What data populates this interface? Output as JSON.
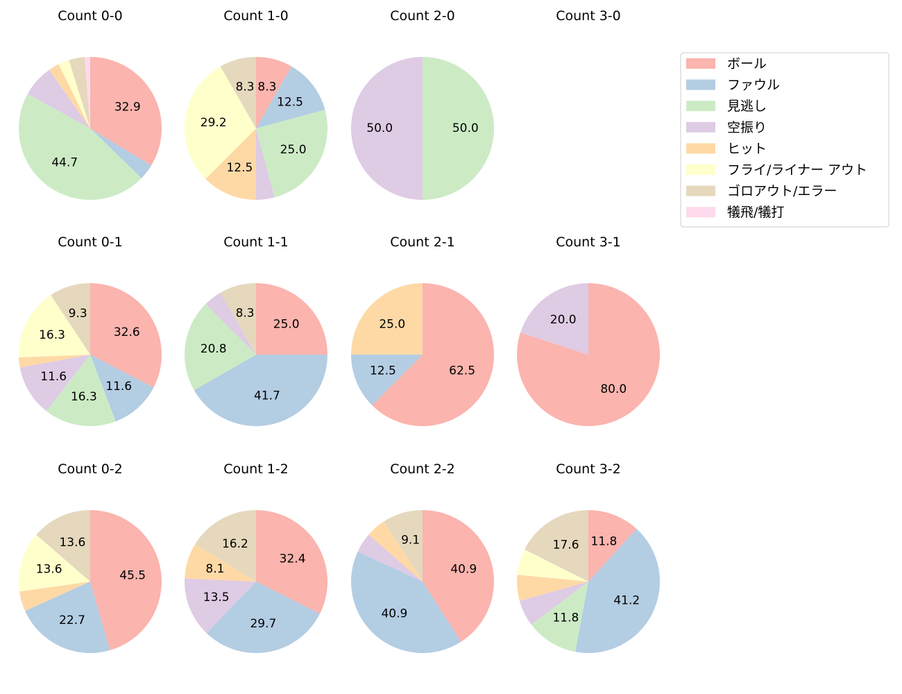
{
  "chart_data": {
    "type": "pie",
    "legend": {
      "placement": "top-right",
      "entries": [
        {
          "name": "ボール",
          "color": "#fbb4ae"
        },
        {
          "name": "ファウル",
          "color": "#b3cde3"
        },
        {
          "name": "見逃し",
          "color": "#ccebc5"
        },
        {
          "name": "空振り",
          "color": "#decbe4"
        },
        {
          "name": "ヒット",
          "color": "#fed9a6"
        },
        {
          "name": "フライ/ライナー アウト",
          "color": "#ffffcc"
        },
        {
          "name": "ゴロアウト/エラー",
          "color": "#e5d8bd"
        },
        {
          "name": "犠飛/犠打",
          "color": "#fddaec"
        }
      ]
    },
    "charts": [
      {
        "title": "Count 0-0",
        "values": [
          32.9,
          3.5,
          44.7,
          7.1,
          2.4,
          2.4,
          3.5,
          1.2
        ],
        "labels": [
          "32.9",
          "",
          "44.7",
          "",
          "",
          "",
          "",
          ""
        ]
      },
      {
        "title": "Count 1-0",
        "values": [
          8.3,
          12.5,
          25.0,
          4.2,
          12.5,
          29.2,
          8.3,
          0
        ],
        "labels": [
          "8.3",
          "12.5",
          "25.0",
          "",
          "12.5",
          "29.2",
          "8.3",
          ""
        ]
      },
      {
        "title": "Count 2-0",
        "values": [
          0,
          0,
          50.0,
          50.0,
          0,
          0,
          0,
          0
        ],
        "labels": [
          "",
          "",
          "50.0",
          "50.0",
          "",
          "",
          "",
          ""
        ]
      },
      {
        "title": "Count 3-0",
        "values": [],
        "labels": []
      },
      {
        "title": "Count 0-1",
        "values": [
          32.6,
          11.6,
          16.3,
          11.6,
          2.3,
          16.3,
          9.3,
          0
        ],
        "labels": [
          "32.6",
          "11.6",
          "16.3",
          "11.6",
          "",
          "16.3",
          "9.3",
          ""
        ]
      },
      {
        "title": "Count 1-1",
        "values": [
          25.0,
          41.7,
          20.8,
          4.2,
          0,
          0,
          8.3,
          0
        ],
        "labels": [
          "25.0",
          "41.7",
          "20.8",
          "",
          "",
          "",
          "8.3",
          ""
        ]
      },
      {
        "title": "Count 2-1",
        "values": [
          62.5,
          12.5,
          0,
          0,
          25.0,
          0,
          0,
          0
        ],
        "labels": [
          "62.5",
          "12.5",
          "",
          "",
          "25.0",
          "",
          "",
          ""
        ]
      },
      {
        "title": "Count 3-1",
        "values": [
          80.0,
          0,
          0,
          20.0,
          0,
          0,
          0,
          0
        ],
        "labels": [
          "80.0",
          "",
          "",
          "20.0",
          "",
          "",
          "",
          ""
        ]
      },
      {
        "title": "Count 0-2",
        "values": [
          45.5,
          22.7,
          0,
          0,
          4.5,
          13.6,
          13.6,
          0
        ],
        "labels": [
          "45.5",
          "22.7",
          "",
          "",
          "",
          "13.6",
          "13.6",
          ""
        ]
      },
      {
        "title": "Count 1-2",
        "values": [
          32.4,
          29.7,
          0,
          13.5,
          8.1,
          0,
          16.2,
          0
        ],
        "labels": [
          "32.4",
          "29.7",
          "",
          "13.5",
          "8.1",
          "",
          "16.2",
          ""
        ]
      },
      {
        "title": "Count 2-2",
        "values": [
          40.9,
          40.9,
          0,
          4.5,
          4.5,
          0,
          9.1,
          0
        ],
        "labels": [
          "40.9",
          "40.9",
          "",
          "",
          "",
          "",
          "9.1",
          ""
        ]
      },
      {
        "title": "Count 3-2",
        "values": [
          11.8,
          41.2,
          11.8,
          5.9,
          5.9,
          5.9,
          17.6,
          0
        ],
        "labels": [
          "11.8",
          "41.2",
          "11.8",
          "",
          "",
          "",
          "17.6",
          ""
        ]
      }
    ]
  }
}
